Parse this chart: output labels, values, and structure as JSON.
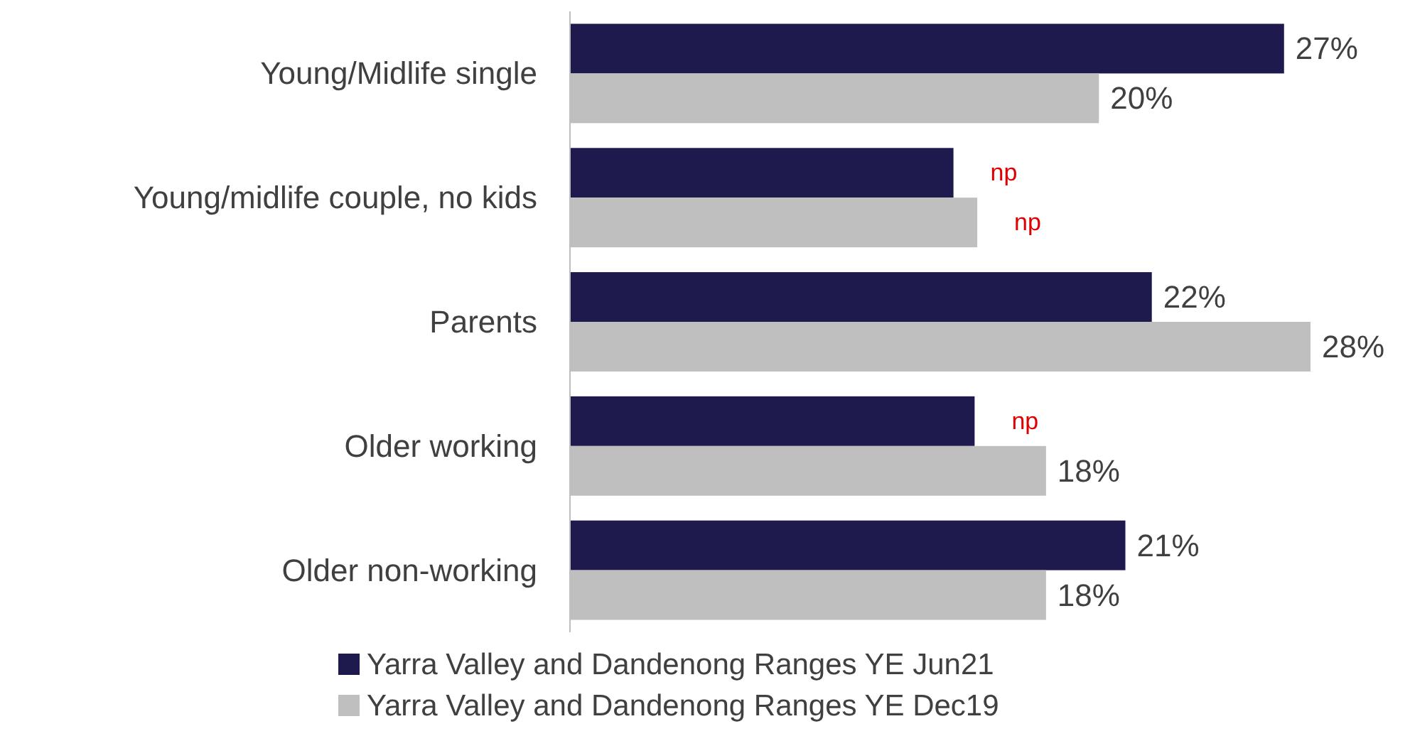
{
  "chart_data": {
    "type": "bar",
    "orientation": "horizontal",
    "categories": [
      "Young/Midlife single",
      "Young/midlife couple, no kids",
      "Parents",
      "Older working",
      "Older non-working"
    ],
    "series": [
      {
        "name": "Yarra Valley and Dandenong Ranges YE Jun21",
        "color": "#1f1a4d",
        "values": [
          27,
          14.5,
          22,
          15.3,
          21
        ],
        "value_labels": [
          "27%",
          "np",
          "22%",
          "np",
          "21%"
        ]
      },
      {
        "name": "Yarra Valley and Dandenong Ranges YE Dec19",
        "color": "#bfbfbf",
        "values": [
          20,
          15.4,
          28,
          18,
          18
        ],
        "value_labels": [
          "20%",
          "np",
          "28%",
          "18%",
          "18%"
        ]
      }
    ],
    "legend": "bottom"
  }
}
